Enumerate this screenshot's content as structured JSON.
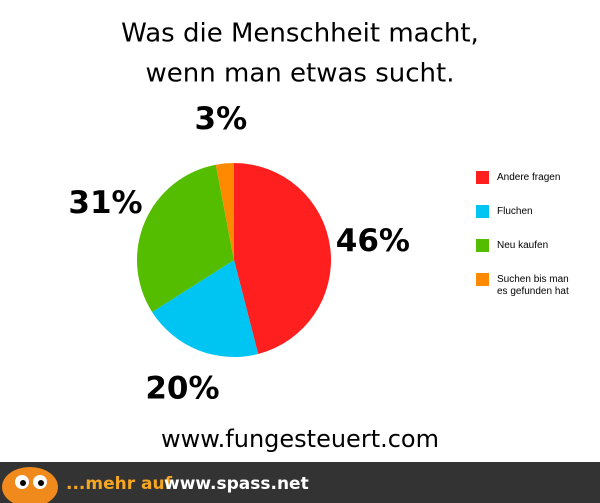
{
  "chart_data": {
    "type": "pie",
    "title": [
      "Was die Menschheit macht,",
      "wenn man etwas sucht."
    ],
    "categories": [
      "Andere fragen",
      "Fluchen",
      "Neu kaufen",
      "Suchen bis man es gefunden hat"
    ],
    "values": [
      46,
      20,
      31,
      3
    ],
    "value_labels": [
      "46%",
      "20%",
      "31%",
      "3%"
    ],
    "colors": [
      "#ff1f1f",
      "#00c4f2",
      "#55bd00",
      "#ff8a00"
    ],
    "legend": "right"
  },
  "footer": {
    "source": "www.fungesteuert.com",
    "banner_lead": "...mehr auf",
    "banner_site": "www.spass.net"
  }
}
